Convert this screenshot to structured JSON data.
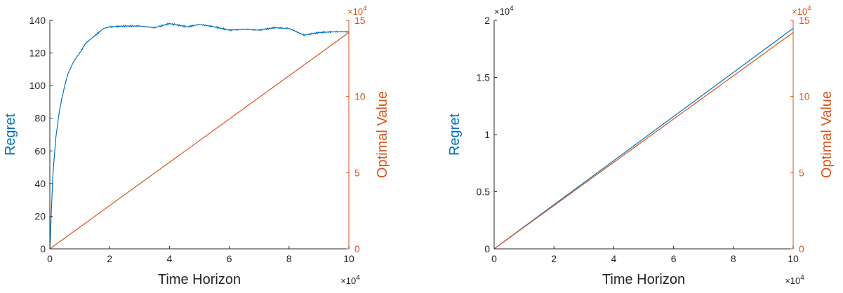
{
  "chart_data": [
    {
      "type": "line",
      "xlabel": "Time Horizon",
      "x_multiplier": "×10",
      "x_multiplier_exp": "4",
      "xlim": [
        0,
        10
      ],
      "xticks": [
        "0",
        "2",
        "4",
        "6",
        "8",
        "10"
      ],
      "left_axis": {
        "label": "Regret",
        "color": "#0072BD",
        "ylim": [
          0,
          140
        ],
        "ticks": [
          "0",
          "20",
          "40",
          "60",
          "80",
          "100",
          "120",
          "140"
        ],
        "multiplier": "",
        "multiplier_exp": ""
      },
      "right_axis": {
        "label": "Optimal Value",
        "color": "#D95319",
        "ylim": [
          0,
          15
        ],
        "ticks": [
          "0",
          "5",
          "10",
          "15"
        ],
        "multiplier": "×10",
        "multiplier_exp": "4"
      },
      "series": [
        {
          "axis": "left",
          "color": "#0072BD",
          "x": [
            0,
            0.1,
            0.2,
            0.3,
            0.4,
            0.5,
            0.6,
            0.8,
            1.0,
            1.2,
            1.4,
            1.6,
            1.8,
            2.0,
            2.5,
            3.0,
            3.5,
            4.0,
            4.3,
            4.6,
            5.0,
            5.5,
            6.0,
            6.5,
            7.0,
            7.5,
            8.0,
            8.5,
            9.0,
            9.5,
            10.0
          ],
          "y": [
            0,
            45,
            68,
            82,
            92,
            100,
            107,
            115,
            120,
            126,
            129,
            132,
            135,
            136,
            136.5,
            136.5,
            135.5,
            138,
            137,
            136,
            137.5,
            136,
            134,
            134.5,
            134,
            135.5,
            135,
            131,
            132.5,
            133,
            133
          ]
        },
        {
          "axis": "right",
          "color": "#D95319",
          "x": [
            0,
            10
          ],
          "y": [
            0,
            14.2
          ]
        }
      ]
    },
    {
      "type": "line",
      "xlabel": "Time Horizon",
      "x_multiplier": "×10",
      "x_multiplier_exp": "4",
      "xlim": [
        0,
        10
      ],
      "xticks": [
        "0",
        "2",
        "4",
        "6",
        "8",
        "10"
      ],
      "left_axis": {
        "label": "Regret",
        "color": "#0072BD",
        "ylim": [
          0,
          2
        ],
        "ticks": [
          "0",
          "0.5",
          "1",
          "1.5",
          "2"
        ],
        "multiplier": "×10",
        "multiplier_exp": "4"
      },
      "right_axis": {
        "label": "Optimal Value",
        "color": "#D95319",
        "ylim": [
          0,
          15
        ],
        "ticks": [
          "0",
          "5",
          "10",
          "15"
        ],
        "multiplier": "×10",
        "multiplier_exp": "4"
      },
      "series": [
        {
          "axis": "left",
          "color": "#0072BD",
          "x": [
            0,
            10
          ],
          "y": [
            0,
            1.93
          ]
        },
        {
          "axis": "right",
          "color": "#D95319",
          "x": [
            0,
            10
          ],
          "y": [
            0,
            14.2
          ]
        }
      ]
    }
  ]
}
